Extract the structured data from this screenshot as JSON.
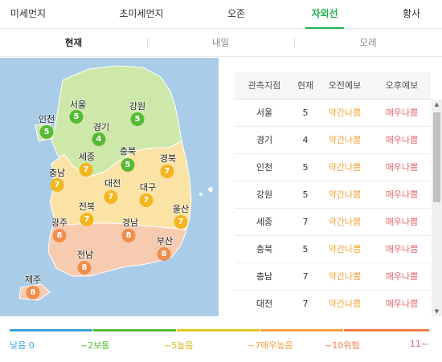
{
  "top_tabs": [
    {
      "label": "미세먼지",
      "active": false
    },
    {
      "label": "초미세먼지",
      "active": false
    },
    {
      "label": "오존",
      "active": false
    },
    {
      "label": "자외선",
      "active": true
    },
    {
      "label": "황사",
      "active": false
    }
  ],
  "sub_tabs": [
    {
      "label": "현재",
      "active": true
    },
    {
      "label": "내일",
      "active": false
    },
    {
      "label": "모레",
      "active": false
    }
  ],
  "colors": {
    "accent": "#1fb04b",
    "level_5": "#58b936",
    "level_7": "#f3b61f",
    "level_8": "#ef8d4b",
    "warn_text": "#f4a53a",
    "danger_text": "#e8676e",
    "sea": "#a9cde8"
  },
  "map": {
    "regions": [
      {
        "id": "seoul",
        "name": "서울",
        "value": "5",
        "level": "5"
      },
      {
        "id": "incheon",
        "name": "인천",
        "value": "5",
        "level": "5"
      },
      {
        "id": "gyeonggi",
        "name": "경기",
        "value": "4",
        "level": "5"
      },
      {
        "id": "gangwon",
        "name": "강원",
        "value": "5",
        "level": "5"
      },
      {
        "id": "chungbuk",
        "name": "충북",
        "value": "5",
        "level": "5"
      },
      {
        "id": "sejong",
        "name": "세종",
        "value": "7",
        "level": "7"
      },
      {
        "id": "chungnam",
        "name": "충남",
        "value": "7",
        "level": "7"
      },
      {
        "id": "daejeon",
        "name": "대전",
        "value": "7",
        "level": "7"
      },
      {
        "id": "gyeongbuk",
        "name": "경북",
        "value": "7",
        "level": "7"
      },
      {
        "id": "daegu",
        "name": "대구",
        "value": "7",
        "level": "7"
      },
      {
        "id": "jeonbuk",
        "name": "전북",
        "value": "7",
        "level": "7"
      },
      {
        "id": "ulsan",
        "name": "울산",
        "value": "7",
        "level": "7"
      },
      {
        "id": "gwangju",
        "name": "광주",
        "value": "8",
        "level": "8"
      },
      {
        "id": "gyeongnam",
        "name": "경남",
        "value": "8",
        "level": "8"
      },
      {
        "id": "busan",
        "name": "부산",
        "value": "8",
        "level": "8"
      },
      {
        "id": "jeonnam",
        "name": "전남",
        "value": "8",
        "level": "8"
      },
      {
        "id": "jeju",
        "name": "제주",
        "value": "8",
        "level": "8"
      }
    ]
  },
  "table": {
    "headers": [
      "관측지점",
      "현재",
      "오전예보",
      "오후예보"
    ],
    "rows": [
      {
        "station": "서울",
        "now": "5",
        "am": "약간나쁨",
        "pm": "매우나쁨"
      },
      {
        "station": "경기",
        "now": "4",
        "am": "약간나쁨",
        "pm": "매우나쁨"
      },
      {
        "station": "인천",
        "now": "5",
        "am": "약간나쁨",
        "pm": "매우나쁨"
      },
      {
        "station": "강원",
        "now": "5",
        "am": "약간나쁨",
        "pm": "매우나쁨"
      },
      {
        "station": "세종",
        "now": "7",
        "am": "약간나쁨",
        "pm": "매우나쁨"
      },
      {
        "station": "충북",
        "now": "5",
        "am": "약간나쁨",
        "pm": "매우나쁨"
      },
      {
        "station": "충남",
        "now": "7",
        "am": "약간나쁨",
        "pm": "매우나쁨"
      },
      {
        "station": "대전",
        "now": "7",
        "am": "약간나쁨",
        "pm": "매우나쁨"
      }
    ]
  },
  "scrollbar": {
    "up_icon": "▲",
    "down_icon": "▼"
  },
  "legend": [
    {
      "label": "낮음 0",
      "color": "#39a3d8"
    },
    {
      "label": "~2보통",
      "color": "#58b936"
    },
    {
      "label": "~5높음",
      "color": "#e3c81d"
    },
    {
      "label": "~7매우높음",
      "color": "#f2a341"
    },
    {
      "label": "~10위험",
      "color": "#ef7c4a"
    },
    {
      "label": "11~",
      "color": "#e8676e"
    }
  ]
}
